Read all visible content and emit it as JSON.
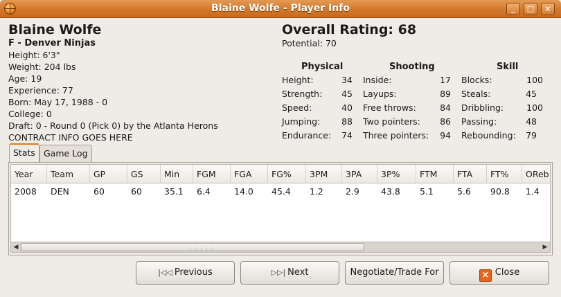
{
  "window": {
    "title": "Blaine Wolfe - Player Info",
    "minimize": "_",
    "maximize": "□",
    "close": "×"
  },
  "player": {
    "name": "Blaine Wolfe",
    "position_team": "F - Denver Ninjas",
    "height": "Height: 6'3\"",
    "weight": "Weight: 204 lbs",
    "age": "Age: 19",
    "experience": "Experience: 77",
    "born": "Born: May 17, 1988 - 0",
    "college": "College: 0",
    "draft": "Draft: 0 - Round 0 (Pick 0) by the Atlanta Herons",
    "contract": "CONTRACT INFO GOES HERE"
  },
  "ratings": {
    "overall": "Overall Rating: 68",
    "potential": "Potential: 70",
    "physical": {
      "heading": "Physical",
      "rows": [
        {
          "label": "Height:",
          "value": "34"
        },
        {
          "label": "Strength:",
          "value": "45"
        },
        {
          "label": "Speed:",
          "value": "40"
        },
        {
          "label": "Jumping:",
          "value": "88"
        },
        {
          "label": "Endurance:",
          "value": "74"
        }
      ]
    },
    "shooting": {
      "heading": "Shooting",
      "rows": [
        {
          "label": "Inside:",
          "value": "17"
        },
        {
          "label": "Layups:",
          "value": "89"
        },
        {
          "label": "Free throws:",
          "value": "84"
        },
        {
          "label": "Two pointers:",
          "value": "86"
        },
        {
          "label": "Three pointers:",
          "value": "94"
        }
      ]
    },
    "skill": {
      "heading": "Skill",
      "rows": [
        {
          "label": "Blocks:",
          "value": "100"
        },
        {
          "label": "Steals:",
          "value": "45"
        },
        {
          "label": "Dribbling:",
          "value": "100"
        },
        {
          "label": "Passing:",
          "value": "48"
        },
        {
          "label": "Rebounding:",
          "value": "79"
        }
      ]
    }
  },
  "tabs": [
    {
      "label": "Stats"
    },
    {
      "label": "Game Log"
    }
  ],
  "stats_table": {
    "columns": [
      "Year",
      "Team",
      "GP",
      "GS",
      "Min",
      "FGM",
      "FGA",
      "FG%",
      "3PM",
      "3PA",
      "3P%",
      "FTM",
      "FTA",
      "FT%",
      "OReb"
    ],
    "rows": [
      [
        "2008",
        "DEN",
        "60",
        "60",
        "35.1",
        "6.4",
        "14.0",
        "45.4",
        "1.2",
        "2.9",
        "43.8",
        "5.1",
        "5.6",
        "90.8",
        "1.4"
      ]
    ]
  },
  "scrollbar": {
    "left_arrow": "◀",
    "right_arrow": "▶",
    "grip": "⋮⋮⋮⋮⋮"
  },
  "buttons": {
    "previous": {
      "icon": "|◁◁",
      "label": "Previous"
    },
    "next": {
      "icon": "▷▷|",
      "label": "Next"
    },
    "negotiate": {
      "label": "Negotiate/Trade For"
    },
    "close": {
      "icon": "×",
      "label": "Close"
    }
  }
}
